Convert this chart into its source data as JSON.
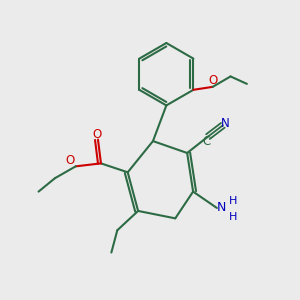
{
  "bg_color": "#ebebeb",
  "bond_color": "#2d6b45",
  "o_color": "#cc0000",
  "n_color": "#0000bb",
  "line_width": 1.5,
  "figsize": [
    3.0,
    3.0
  ],
  "dpi": 100,
  "xlim": [
    0,
    10
  ],
  "ylim": [
    0,
    10
  ]
}
